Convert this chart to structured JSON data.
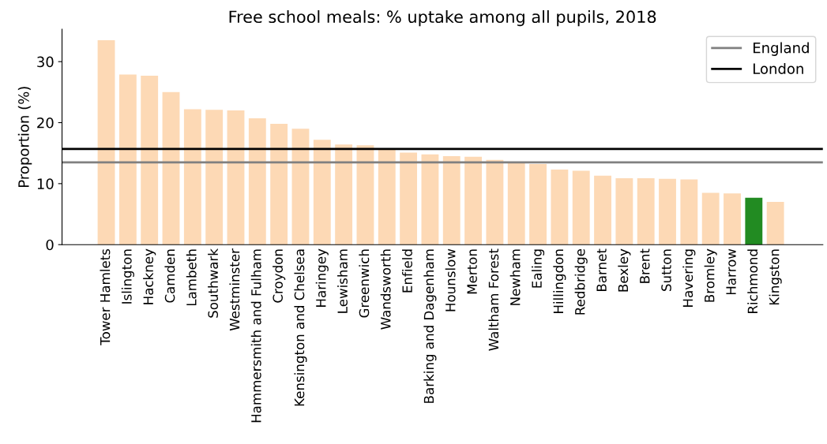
{
  "chart_data": {
    "type": "bar",
    "title": "Free school meals: % uptake among all pupils, 2018",
    "ylabel": "Proportion (%)",
    "categories": [
      "Tower Hamlets",
      "Islington",
      "Hackney",
      "Camden",
      "Lambeth",
      "Southwark",
      "Westminster",
      "Hammersmith and Fulham",
      "Croydon",
      "Kensington and Chelsea",
      "Haringey",
      "Lewisham",
      "Greenwich",
      "Wandsworth",
      "Enfield",
      "Barking and Dagenham",
      "Hounslow",
      "Merton",
      "Waltham Forest",
      "Newham",
      "Ealing",
      "Hillingdon",
      "Redbridge",
      "Barnet",
      "Bexley",
      "Brent",
      "Sutton",
      "Havering",
      "Bromley",
      "Harrow",
      "Richmond",
      "Kingston"
    ],
    "values": [
      33.5,
      27.9,
      27.7,
      25.0,
      22.2,
      22.1,
      22.0,
      20.7,
      19.8,
      19.0,
      17.2,
      16.4,
      16.3,
      15.6,
      15.1,
      14.8,
      14.5,
      14.4,
      13.9,
      13.4,
      13.2,
      12.3,
      12.1,
      11.3,
      10.9,
      10.9,
      10.8,
      10.7,
      8.5,
      8.4,
      7.7,
      7.0
    ],
    "colors": [
      "#fdd9b5",
      "#fdd9b5",
      "#fdd9b5",
      "#fdd9b5",
      "#fdd9b5",
      "#fdd9b5",
      "#fdd9b5",
      "#fdd9b5",
      "#fdd9b5",
      "#fdd9b5",
      "#fdd9b5",
      "#fdd9b5",
      "#fdd9b5",
      "#fdd9b5",
      "#fdd9b5",
      "#fdd9b5",
      "#fdd9b5",
      "#fdd9b5",
      "#fdd9b5",
      "#fdd9b5",
      "#fdd9b5",
      "#fdd9b5",
      "#fdd9b5",
      "#fdd9b5",
      "#fdd9b5",
      "#fdd9b5",
      "#fdd9b5",
      "#fdd9b5",
      "#fdd9b5",
      "#fdd9b5",
      "#228b22",
      "#fdd9b5"
    ],
    "ylim": [
      0,
      35.3
    ],
    "yticks": [
      0,
      10,
      20,
      30
    ],
    "ref_lines": [
      {
        "axis": "y",
        "value": 13.5,
        "label": "England",
        "color": "#808080"
      },
      {
        "axis": "y",
        "value": 15.7,
        "label": "London",
        "color": "#000000"
      }
    ],
    "legend": "top right",
    "grid": false
  }
}
